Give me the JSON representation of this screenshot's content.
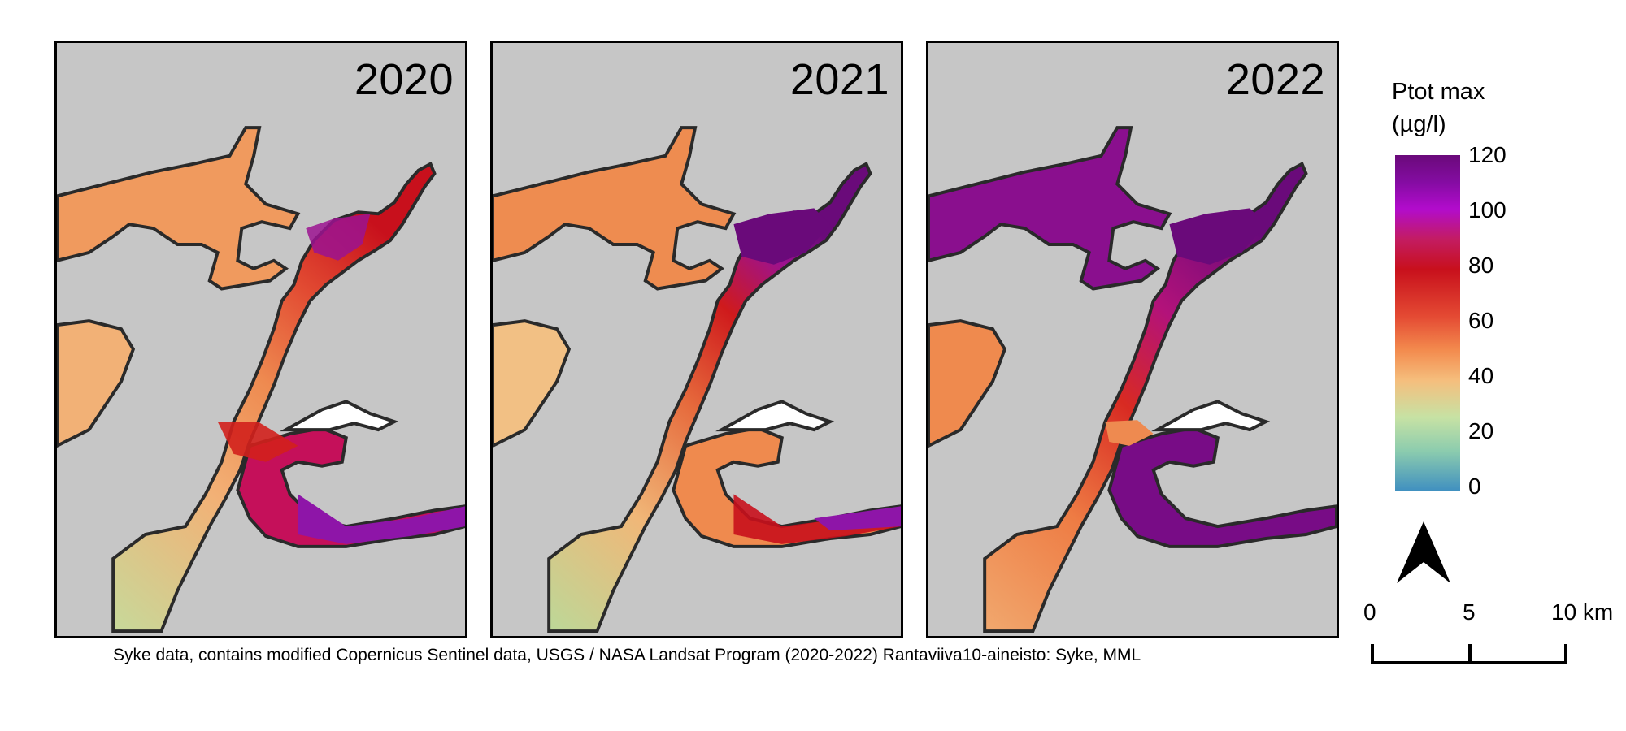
{
  "panels": [
    {
      "year": "2020"
    },
    {
      "year": "2021"
    },
    {
      "year": "2022"
    }
  ],
  "legend": {
    "title_line1": "Ptot max",
    "title_line2": "(µg/l)",
    "ticks": [
      "120",
      "100",
      "80",
      "60",
      "40",
      "20",
      "0"
    ],
    "range": [
      0,
      120
    ]
  },
  "scale_bar": {
    "labels": [
      "0",
      "5",
      "10 km"
    ]
  },
  "credit": "Syke data, contains modified Copernicus Sentinel data, USGS / NASA Landsat Program (2020-2022) Rantaviiva10-aineisto: Syke, MML",
  "colors": {
    "land": "#c6c6c6",
    "shoreline": "#2a2a2a",
    "low": "#3f8fc0",
    "mid": "#f5be7d",
    "high": "#6a0a7a"
  }
}
